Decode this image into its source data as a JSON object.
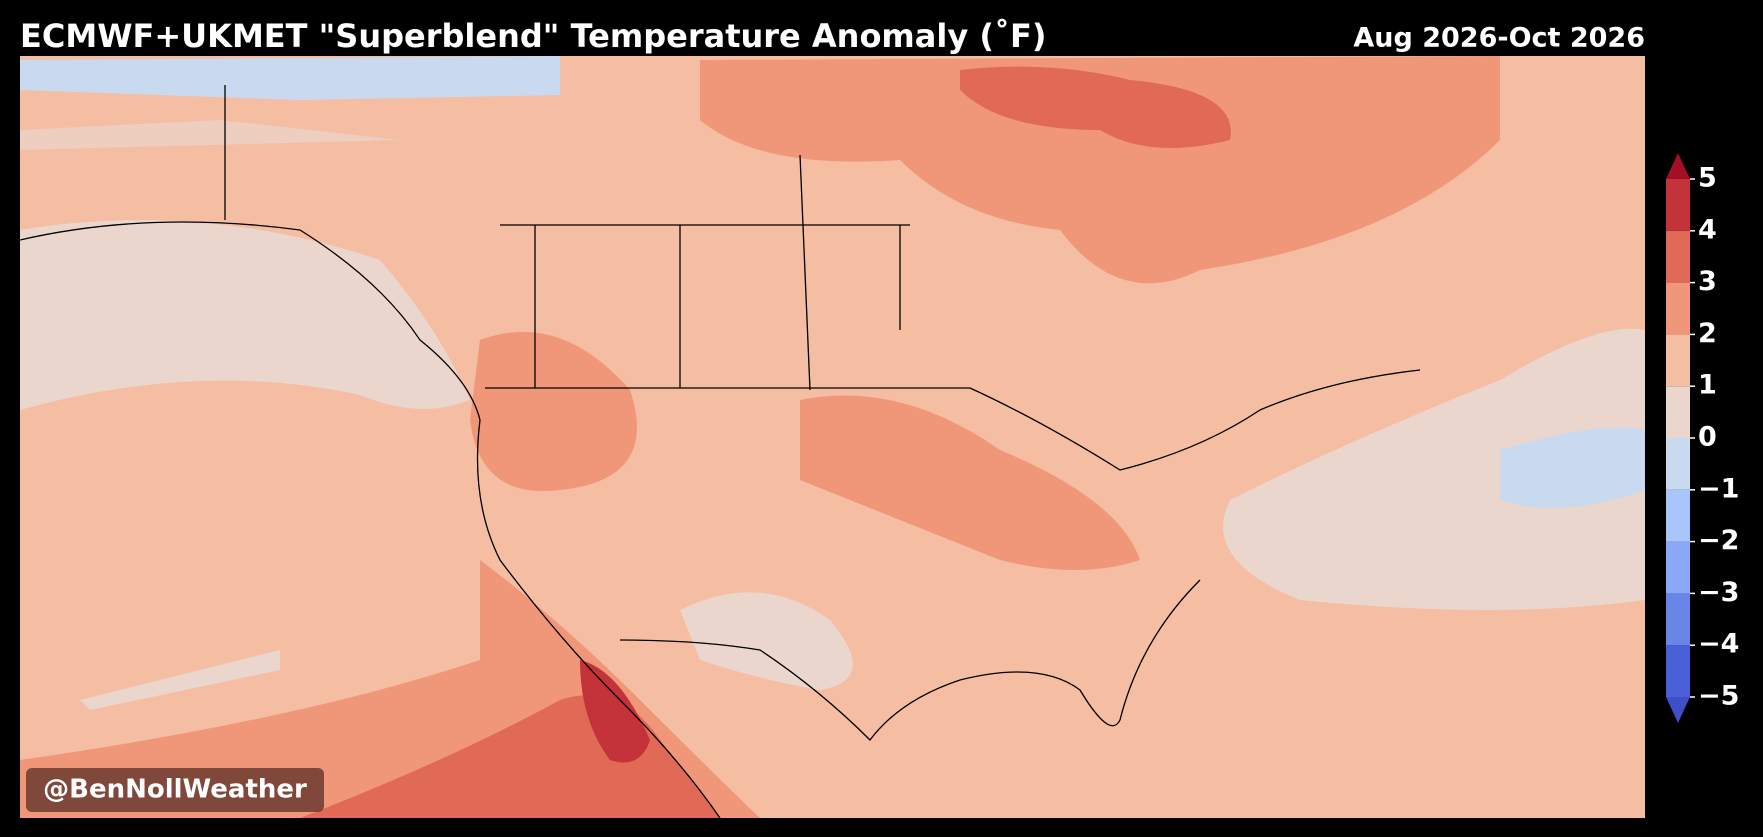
{
  "header": {
    "title": "ECMWF+UKMET \"Superblend\" Temperature Anomaly (˚F)",
    "period": "Aug 2026-Oct 2026"
  },
  "colorbar": {
    "ticks": [
      {
        "value": -5,
        "label": "−5"
      },
      {
        "value": -4,
        "label": "−4"
      },
      {
        "value": -3,
        "label": "−3"
      },
      {
        "value": -2,
        "label": "−2"
      },
      {
        "value": -1,
        "label": "−1"
      },
      0,
      1,
      2,
      3,
      4,
      5
    ],
    "colors": [
      "#4b5fd8",
      "#6a85e8",
      "#8aa8f5",
      "#a9c6fb",
      "#c9daf0",
      "#ead6cc",
      "#f5bda2",
      "#ef9778",
      "#e06a56",
      "#c4323a"
    ],
    "under_color": "#3f4fc8",
    "over_color": "#a50f26"
  },
  "watermark": "@BenNollWeather"
}
